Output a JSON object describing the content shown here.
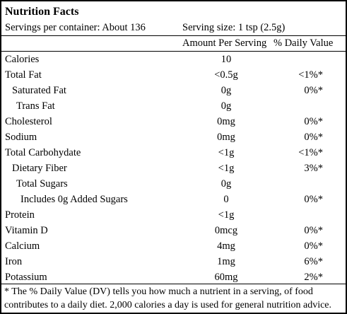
{
  "title": "Nutrition Facts",
  "servings": "Servings per container: About 136",
  "serving_size": "Serving size: 1 tsp (2.5g)",
  "header": {
    "amount": "Amount Per Serving",
    "dv": "% Daily Value"
  },
  "rows": [
    {
      "label": "Calories",
      "amount": "10"
    },
    {
      "label": "Total Fat",
      "amount": "<0.5g",
      "dv": "<1%*"
    },
    {
      "label": "Saturated Fat",
      "amount": "0g",
      "dv": "0%*"
    },
    {
      "label": "Trans Fat",
      "amount": "0g"
    },
    {
      "label": "Cholesterol",
      "amount": "0mg",
      "dv": "0%*"
    },
    {
      "label": "Sodium",
      "amount": "0mg",
      "dv": "0%*"
    },
    {
      "label": "Total Carbohydate",
      "amount": "<1g",
      "dv": "<1%*"
    },
    {
      "label": "Dietary Fiber",
      "amount": "<1g",
      "dv": "3%*"
    },
    {
      "label": "Total Sugars",
      "amount": "0g"
    },
    {
      "label": "Includes 0g Added Sugars",
      "amount": "0",
      "dv": "0%*"
    },
    {
      "label": "Protein",
      "amount": "<1g"
    },
    {
      "label": "Vitamin D",
      "amount": "0mcg",
      "dv": "0%*"
    },
    {
      "label": "Calcium",
      "amount": "4mg",
      "dv": "0%*"
    },
    {
      "label": "Iron",
      "amount": "1mg",
      "dv": "6%*"
    },
    {
      "label": "Potassium",
      "amount": "60mg",
      "dv": "2%*"
    }
  ],
  "footnote": "* The % Daily Value (DV) tells you how much a nutrient in a serving, of food contributes to a daily diet. 2,000 calories a day is used for general nutrition advice."
}
